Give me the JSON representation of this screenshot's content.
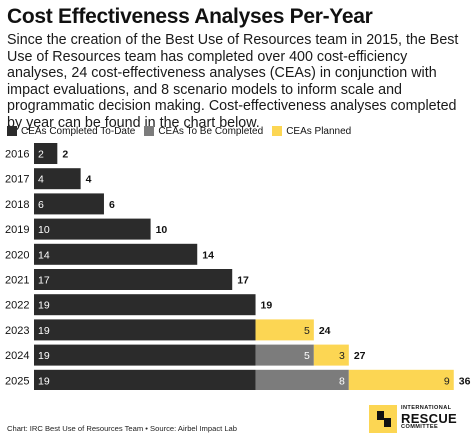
{
  "title": "Cost Effectiveness Analyses Per-Year",
  "subtitle": "Since the creation of the Best Use of Resources team in 2015, the Best Use of Resources team has completed over 400 cost-efficiency analyses, 24 cost-effectiveness analyses (CEAs) in conjunction with impact evaluations, and 8 scenario models to inform scale and programmatic decision making. Cost-effectiveness analyses completed by year can be found in the chart below.",
  "legend": {
    "completed": "CEAs Completed To-Date",
    "to_be_completed": "CEAs To Be Completed",
    "planned": "CEAs Planned"
  },
  "colors": {
    "completed": "#2b2b2b",
    "to_be_completed": "#7c7c7c",
    "planned": "#fcd653"
  },
  "footer": "Chart: IRC Best Use of Resources Team • Source: Airbel Impact Lab",
  "logo": {
    "small_top": "INTERNATIONAL",
    "big": "RESCUE",
    "small_bottom": "COMMITTEE"
  },
  "chart_data": {
    "type": "bar",
    "orientation": "horizontal",
    "stacked": true,
    "categories": [
      "2016",
      "2017",
      "2018",
      "2019",
      "2020",
      "2021",
      "2022",
      "2023",
      "2024",
      "2025"
    ],
    "series": [
      {
        "name": "CEAs Completed To-Date",
        "values": [
          2,
          4,
          6,
          10,
          14,
          17,
          19,
          19,
          19,
          19
        ]
      },
      {
        "name": "CEAs To Be Completed",
        "values": [
          0,
          0,
          0,
          0,
          0,
          0,
          0,
          0,
          5,
          8
        ]
      },
      {
        "name": "CEAs Planned",
        "values": [
          0,
          0,
          0,
          0,
          0,
          0,
          0,
          5,
          3,
          9
        ]
      }
    ],
    "totals": [
      2,
      4,
      6,
      10,
      14,
      17,
      19,
      24,
      27,
      36
    ],
    "xlim": [
      0,
      36
    ],
    "grid": false,
    "legend_position": "top-left"
  }
}
